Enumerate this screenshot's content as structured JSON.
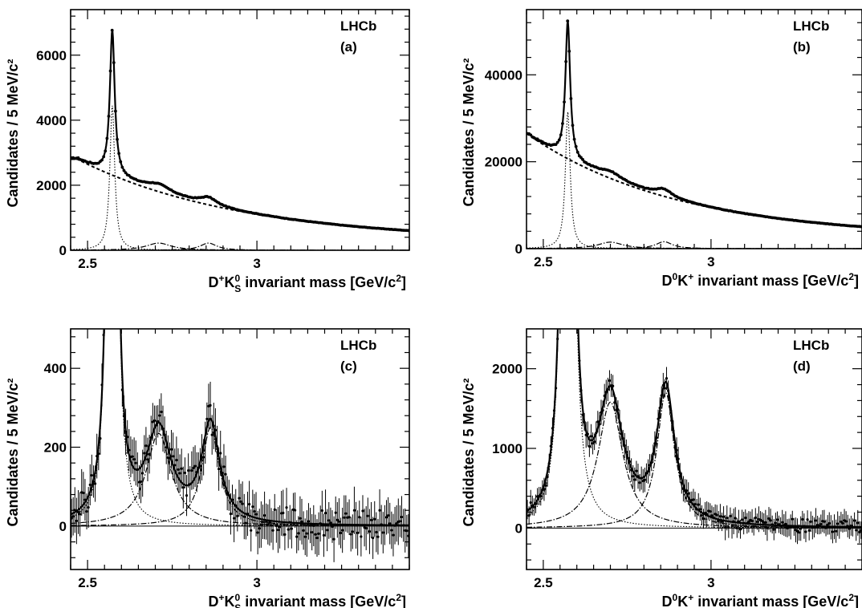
{
  "chart_data": [
    {
      "id": "a",
      "type": "scatter",
      "label_line1": "LHCb",
      "label_line2": "(a)",
      "ylabel": "Candidates / 5 MeV/c²",
      "xlabel": {
        "pre": "D",
        "sup1": "+",
        "mid": "K",
        "sup2": "0",
        "sub2": "S",
        "post": " invariant mass [GeV/c",
        "sup3": "2",
        "end": "]"
      },
      "xlim": [
        2.45,
        3.45
      ],
      "ylim": [
        0,
        7400
      ],
      "xticks": [
        2.5,
        3
      ],
      "xtick_labels": [
        "2.5",
        "3"
      ],
      "yticks": [
        0,
        2000,
        4000,
        6000
      ],
      "ytick_labels": [
        "0",
        "2000",
        "4000",
        "6000"
      ],
      "model": {
        "bkg_a": 2800,
        "bkg_peak": 2.47,
        "bkg_slope": 2.1,
        "bkg_floor": 280,
        "sig_m": 2.573,
        "sig_amp": 4450,
        "sig_w": 0.0085,
        "r1_m": 2.71,
        "r1_amp": 220,
        "r1_w": 0.045,
        "r2_m": 2.857,
        "r2_amp": 220,
        "r2_w": 0.03
      },
      "points": {
        "step": 0.005,
        "errors": false
      },
      "zoomed": false
    },
    {
      "id": "b",
      "type": "scatter",
      "label_line1": "LHCb",
      "label_line2": "(b)",
      "ylabel": "Candidates / 5 MeV/c²",
      "xlabel": {
        "pre": "D",
        "sup1": "0",
        "mid": "K",
        "sup2": "+",
        "sub2": "",
        "post": " invariant mass [GeV/c",
        "sup3": "2",
        "end": "]"
      },
      "xlim": [
        2.45,
        3.45
      ],
      "ylim": [
        0,
        55000
      ],
      "xticks": [
        2.5,
        3
      ],
      "xtick_labels": [
        "2.5",
        "3"
      ],
      "yticks": [
        0,
        20000,
        40000
      ],
      "ytick_labels": [
        "0",
        "20000",
        "40000"
      ],
      "model": {
        "bkg_a": 26500,
        "bkg_peak": 2.45,
        "bkg_slope": 2.25,
        "bkg_floor": 2500,
        "sig_m": 2.573,
        "sig_amp": 31500,
        "sig_w": 0.0085,
        "r1_m": 2.7,
        "r1_amp": 1500,
        "r1_w": 0.045,
        "r2_m": 2.86,
        "r2_amp": 1600,
        "r2_w": 0.03
      },
      "points": {
        "step": 0.005,
        "errors": false
      },
      "zoomed": false
    },
    {
      "id": "c",
      "type": "scatter",
      "label_line1": "LHCb",
      "label_line2": "(c)",
      "ylabel": "Candidates / 5 MeV/c²",
      "xlabel": {
        "pre": "D",
        "sup1": "+",
        "mid": "K",
        "sup2": "0",
        "sub2": "S",
        "post": " invariant mass [GeV/c",
        "sup3": "2",
        "end": "]"
      },
      "xlim": [
        2.45,
        3.45
      ],
      "ylim": [
        -110,
        500
      ],
      "xticks": [
        2.5,
        3
      ],
      "xtick_labels": [
        "2.5",
        "3"
      ],
      "yticks": [
        0,
        200,
        400
      ],
      "ytick_labels": [
        "0",
        "200",
        "400"
      ],
      "model": {
        "sig_m": 2.573,
        "sig_amp": 4450,
        "sig_w": 0.0085,
        "r1_m": 2.71,
        "r1_amp": 235,
        "r1_w": 0.045,
        "r2_m": 2.863,
        "r2_amp": 250,
        "r2_w": 0.032
      },
      "points": {
        "step": 0.005,
        "errors": true,
        "err": 45,
        "noise": 38
      },
      "zoomed": true
    },
    {
      "id": "d",
      "type": "scatter",
      "label_line1": "LHCb",
      "label_line2": "(d)",
      "ylabel": "Candidates / 5 MeV/c²",
      "xlabel": {
        "pre": "D",
        "sup1": "0",
        "mid": "K",
        "sup2": "+",
        "sub2": "",
        "post": " invariant mass [GeV/c",
        "sup3": "2",
        "end": "]"
      },
      "xlim": [
        2.45,
        3.45
      ],
      "ylim": [
        -520,
        2500
      ],
      "xticks": [
        2.5,
        3
      ],
      "xtick_labels": [
        "2.5",
        "3"
      ],
      "yticks": [
        0,
        1000,
        2000
      ],
      "ytick_labels": [
        "0",
        "1000",
        "2000"
      ],
      "model": {
        "sig_m": 2.573,
        "sig_amp": 31500,
        "sig_w": 0.0085,
        "r1_m": 2.7,
        "r1_amp": 1580,
        "r1_w": 0.045,
        "r2_m": 2.865,
        "r2_amp": 1700,
        "r2_w": 0.032
      },
      "points": {
        "step": 0.005,
        "errors": true,
        "err": 120,
        "noise": 85
      },
      "zoomed": true
    }
  ]
}
